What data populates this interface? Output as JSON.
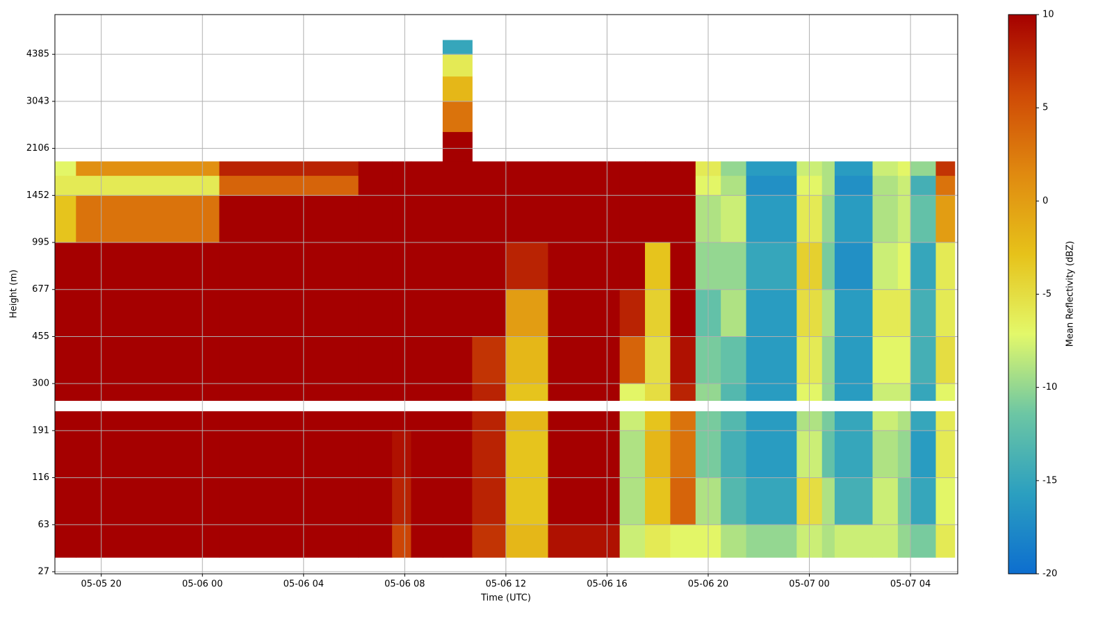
{
  "chart_data": {
    "type": "heatmap",
    "x_label": "Time (UTC)",
    "y_label": "Height (m)",
    "xlim": [
      "05-05 18:10",
      "05-07 05:52"
    ],
    "xticks": [
      "05-05 20",
      "05-06 00",
      "05-06 04",
      "05-06 08",
      "05-06 12",
      "05-06 16",
      "05-06 20",
      "05-07 00",
      "05-07 04"
    ],
    "ylim": [
      26,
      5970
    ],
    "yticks": [
      27,
      63,
      116,
      191,
      300,
      455,
      677,
      995,
      1452,
      2106,
      3043,
      4385
    ],
    "grid": true,
    "x_edges": [
      "05-05 18:10",
      "05-05 19:00",
      "05-06 00:40",
      "05-06 06:10",
      "05-06 07:30",
      "05-06 08:15",
      "05-06 09:30",
      "05-06 10:40",
      "05-06 12:00",
      "05-06 13:40",
      "05-06 16:30",
      "05-06 17:30",
      "05-06 18:30",
      "05-06 19:30",
      "05-06 20:30",
      "05-06 21:30",
      "05-06 23:30",
      "05-07 00:30",
      "05-07 01:00",
      "05-07 02:30",
      "05-07 03:30",
      "05-07 04:00",
      "05-07 05:00",
      "05-07 05:45"
    ],
    "y_edges": [
      35,
      63,
      116,
      191,
      230,
      255,
      300,
      455,
      677,
      995,
      1452,
      1700,
      1900,
      2400,
      3043,
      3700,
      4385,
      4900
    ],
    "values": [
      [
        10,
        10,
        10,
        10,
        6,
        10,
        10,
        7,
        -2,
        9,
        -8,
        -6,
        -7,
        -7,
        -9,
        -10,
        -8,
        -9,
        -8,
        -8,
        -10,
        -11,
        -6
      ],
      [
        10,
        10,
        10,
        10,
        8,
        10,
        10,
        8,
        -3,
        10,
        -9,
        -3,
        4,
        -9,
        -13,
        -15,
        -5,
        -9,
        -14,
        -8,
        -11,
        -15,
        -7
      ],
      [
        10,
        10,
        10,
        10,
        9,
        10,
        10,
        8,
        -3,
        10,
        -9,
        -2,
        3,
        -11,
        -14,
        -16,
        -8,
        -12,
        -15,
        -9,
        -10,
        -16,
        -6
      ],
      [
        10,
        10,
        10,
        10,
        10,
        10,
        10,
        8,
        -2,
        10,
        -8,
        -3,
        3,
        -11,
        -13,
        -16,
        -9,
        -11,
        -15,
        -8,
        -9,
        -15,
        -6
      ],
      [
        null,
        null,
        null,
        null,
        null,
        null,
        null,
        null,
        null,
        null,
        null,
        null,
        null,
        null,
        null,
        null,
        null,
        null,
        null,
        null,
        null,
        null,
        null
      ],
      [
        10,
        10,
        10,
        10,
        10,
        10,
        10,
        8,
        -3,
        10,
        -7,
        -5,
        8,
        -10,
        -13,
        -16,
        -7,
        -10,
        -16,
        -8,
        -8,
        -15,
        -7
      ],
      [
        10,
        10,
        10,
        10,
        10,
        10,
        10,
        7,
        -2,
        10,
        4,
        -5,
        9,
        -11,
        -12,
        -16,
        -6,
        -10,
        -16,
        -7,
        -7,
        -14,
        -5
      ],
      [
        10,
        10,
        10,
        10,
        10,
        10,
        10,
        10,
        0,
        10,
        8,
        -4,
        10,
        -12,
        -9,
        -16,
        -5,
        -9,
        -16,
        -6,
        -6,
        -14,
        -6
      ],
      [
        10,
        10,
        10,
        10,
        10,
        10,
        10,
        10,
        8,
        10,
        10,
        -3,
        10,
        -10,
        -10,
        -15,
        -4,
        -11,
        -17,
        -8,
        -7,
        -15,
        -6
      ],
      [
        -3,
        3,
        10,
        10,
        10,
        10,
        10,
        10,
        10,
        10,
        10,
        10,
        10,
        -9,
        -8,
        -16,
        -6,
        -10,
        -16,
        -9,
        -8,
        -12,
        0
      ],
      [
        -6,
        -6,
        4,
        10,
        10,
        10,
        10,
        10,
        10,
        10,
        10,
        10,
        10,
        -7,
        -9,
        -17,
        -7,
        -9,
        -17,
        -9,
        -8,
        -14,
        3
      ],
      [
        -7,
        1,
        8,
        10,
        10,
        10,
        10,
        10,
        10,
        10,
        10,
        10,
        10,
        -6,
        -10,
        -16,
        -8,
        -9,
        -16,
        -8,
        -7,
        -10,
        7
      ],
      [
        null,
        null,
        null,
        null,
        null,
        null,
        10,
        null,
        null,
        null,
        null,
        null,
        null,
        null,
        null,
        null,
        null,
        null,
        null,
        null,
        null,
        null,
        null
      ],
      [
        null,
        null,
        null,
        null,
        null,
        null,
        3,
        null,
        null,
        null,
        null,
        null,
        null,
        null,
        null,
        null,
        null,
        null,
        null,
        null,
        null,
        null,
        null
      ],
      [
        null,
        null,
        null,
        null,
        null,
        null,
        -2,
        null,
        null,
        null,
        null,
        null,
        null,
        null,
        null,
        null,
        null,
        null,
        null,
        null,
        null,
        null,
        null
      ],
      [
        null,
        null,
        null,
        null,
        null,
        null,
        -6,
        null,
        null,
        null,
        null,
        null,
        null,
        null,
        null,
        null,
        null,
        null,
        null,
        null,
        null,
        null,
        null
      ],
      [
        null,
        null,
        null,
        null,
        null,
        null,
        -15,
        null,
        null,
        null,
        null,
        null,
        null,
        null,
        null,
        null,
        null,
        null,
        null,
        null,
        null,
        null,
        null
      ]
    ],
    "colorbar": {
      "label": "Mean Reflectivity (dBZ)",
      "clim": [
        -20,
        10
      ],
      "ticks": [
        -20,
        -15,
        -10,
        -5,
        0,
        5,
        10
      ],
      "colors": [
        "#0d6ecf",
        "#2b9fc0",
        "#6cc6a4",
        "#e3f86a",
        "#e6c21a",
        "#e08a10",
        "#cf4a06",
        "#a50000"
      ]
    }
  }
}
